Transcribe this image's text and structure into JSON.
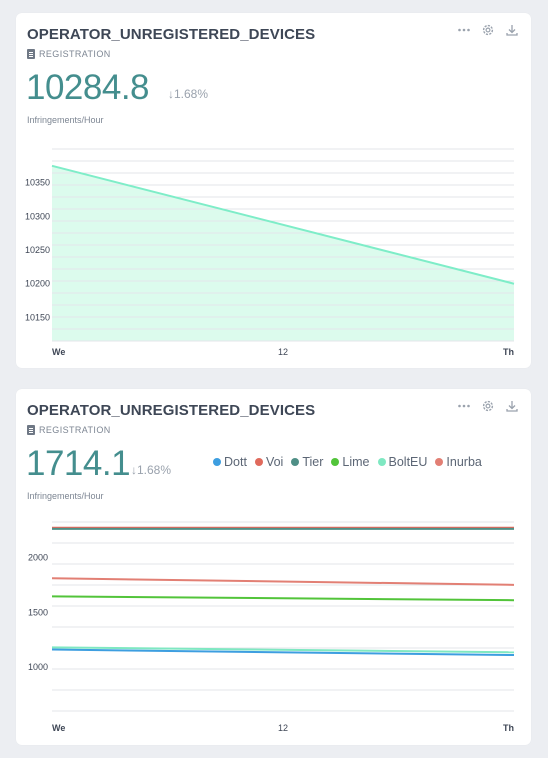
{
  "cards": [
    {
      "title": "OPERATOR_UNREGISTERED_DEVICES",
      "tag": "REGISTRATION",
      "value": "10284.8",
      "delta": "↓1.68%",
      "unit": "Infringements/Hour"
    },
    {
      "title": "OPERATOR_UNREGISTERED_DEVICES",
      "tag": "REGISTRATION",
      "value": "1714.1",
      "delta": "↓1.68%",
      "unit": "Infringements/Hour"
    }
  ],
  "colors": {
    "accent": "#448e8e",
    "area_fill": "#dcfbed",
    "area_line": "#7eedc8",
    "grid": "#e3e6ea"
  },
  "icons": [
    "more-icon",
    "gear-icon",
    "download-icon",
    "registration-icon"
  ],
  "chart_data": [
    {
      "type": "area",
      "x": [
        "We",
        "12",
        "Th"
      ],
      "series": [
        {
          "values": [
            10375,
            null,
            10200
          ]
        }
      ],
      "yticks": [
        10150,
        10200,
        10250,
        10300,
        10350
      ],
      "ylim": [
        10115,
        10400
      ],
      "grid": true,
      "legend": "none",
      "color": "#7eedc8"
    },
    {
      "type": "line",
      "x": [
        "We",
        "12",
        "Th"
      ],
      "series": [
        {
          "name": "Dott",
          "color": "#3d9ee0",
          "values": [
            1160,
            null,
            1110
          ]
        },
        {
          "name": "Voi",
          "color": "#e06a5c",
          "values": [
            2270,
            null,
            2270
          ]
        },
        {
          "name": "Tier",
          "color": "#4f8f86",
          "values": [
            2260,
            null,
            2260
          ]
        },
        {
          "name": "Lime",
          "color": "#52c43a",
          "values": [
            1645,
            null,
            1610
          ]
        },
        {
          "name": "BoltEU",
          "color": "#7fe8c2",
          "values": [
            1180,
            null,
            1135
          ]
        },
        {
          "name": "Inurba",
          "color": "#e27f74",
          "values": [
            1810,
            null,
            1750
          ]
        }
      ],
      "yticks": [
        1000,
        1500,
        2000
      ],
      "ylim": [
        600,
        2350
      ],
      "grid": true,
      "legend": "top"
    }
  ]
}
